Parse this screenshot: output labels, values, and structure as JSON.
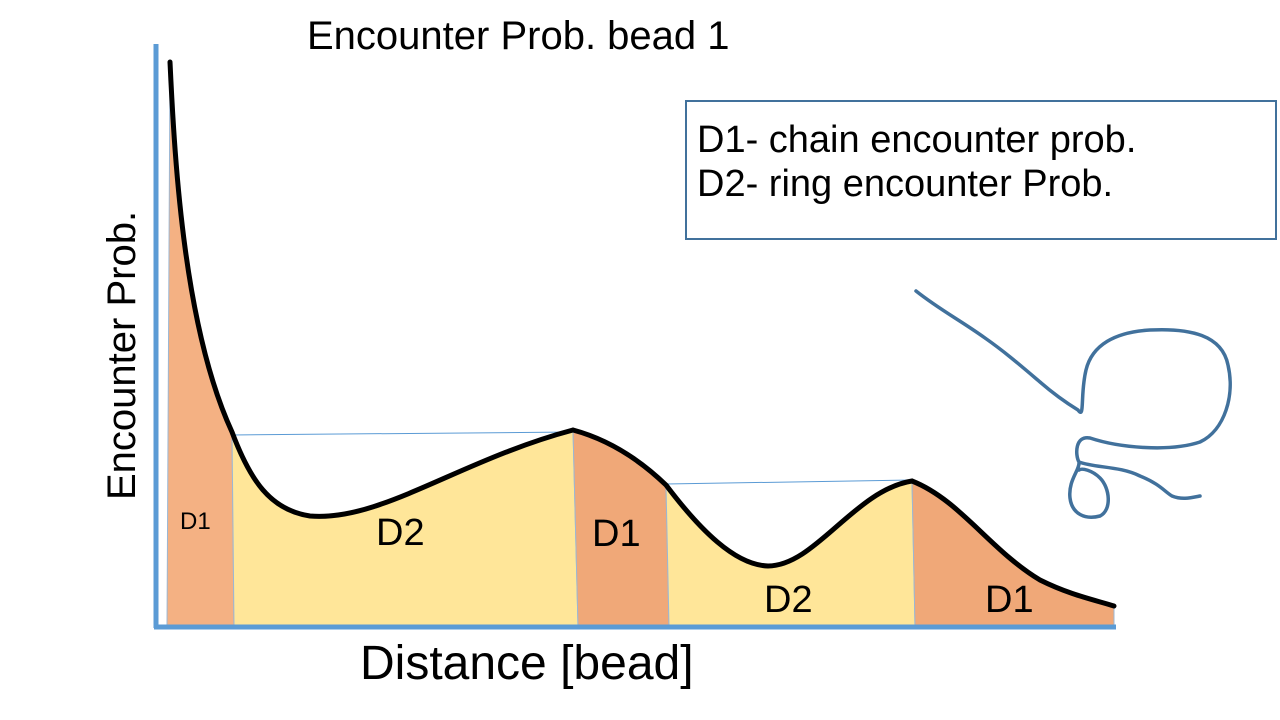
{
  "title": "Encounter Prob. bead 1",
  "axes": {
    "x_label": "Distance [bead]",
    "y_label": "Encounter Prob."
  },
  "legend": {
    "items": [
      "D1- chain encounter prob.",
      "D2- ring encounter Prob."
    ]
  },
  "regions": [
    {
      "label": "D1",
      "kind": "chain"
    },
    {
      "label": "D2",
      "kind": "ring"
    },
    {
      "label": "D1",
      "kind": "chain"
    },
    {
      "label": "D2",
      "kind": "ring"
    },
    {
      "label": "D1",
      "kind": "chain"
    }
  ],
  "colors": {
    "chain_fill": "#f4b183",
    "chain_fill_dark": "#f0a878",
    "ring_fill": "#ffe699",
    "curve": "#000000",
    "axis": "#5b9bd5",
    "sketch": "#41719c",
    "legend_border": "#41719c"
  }
}
